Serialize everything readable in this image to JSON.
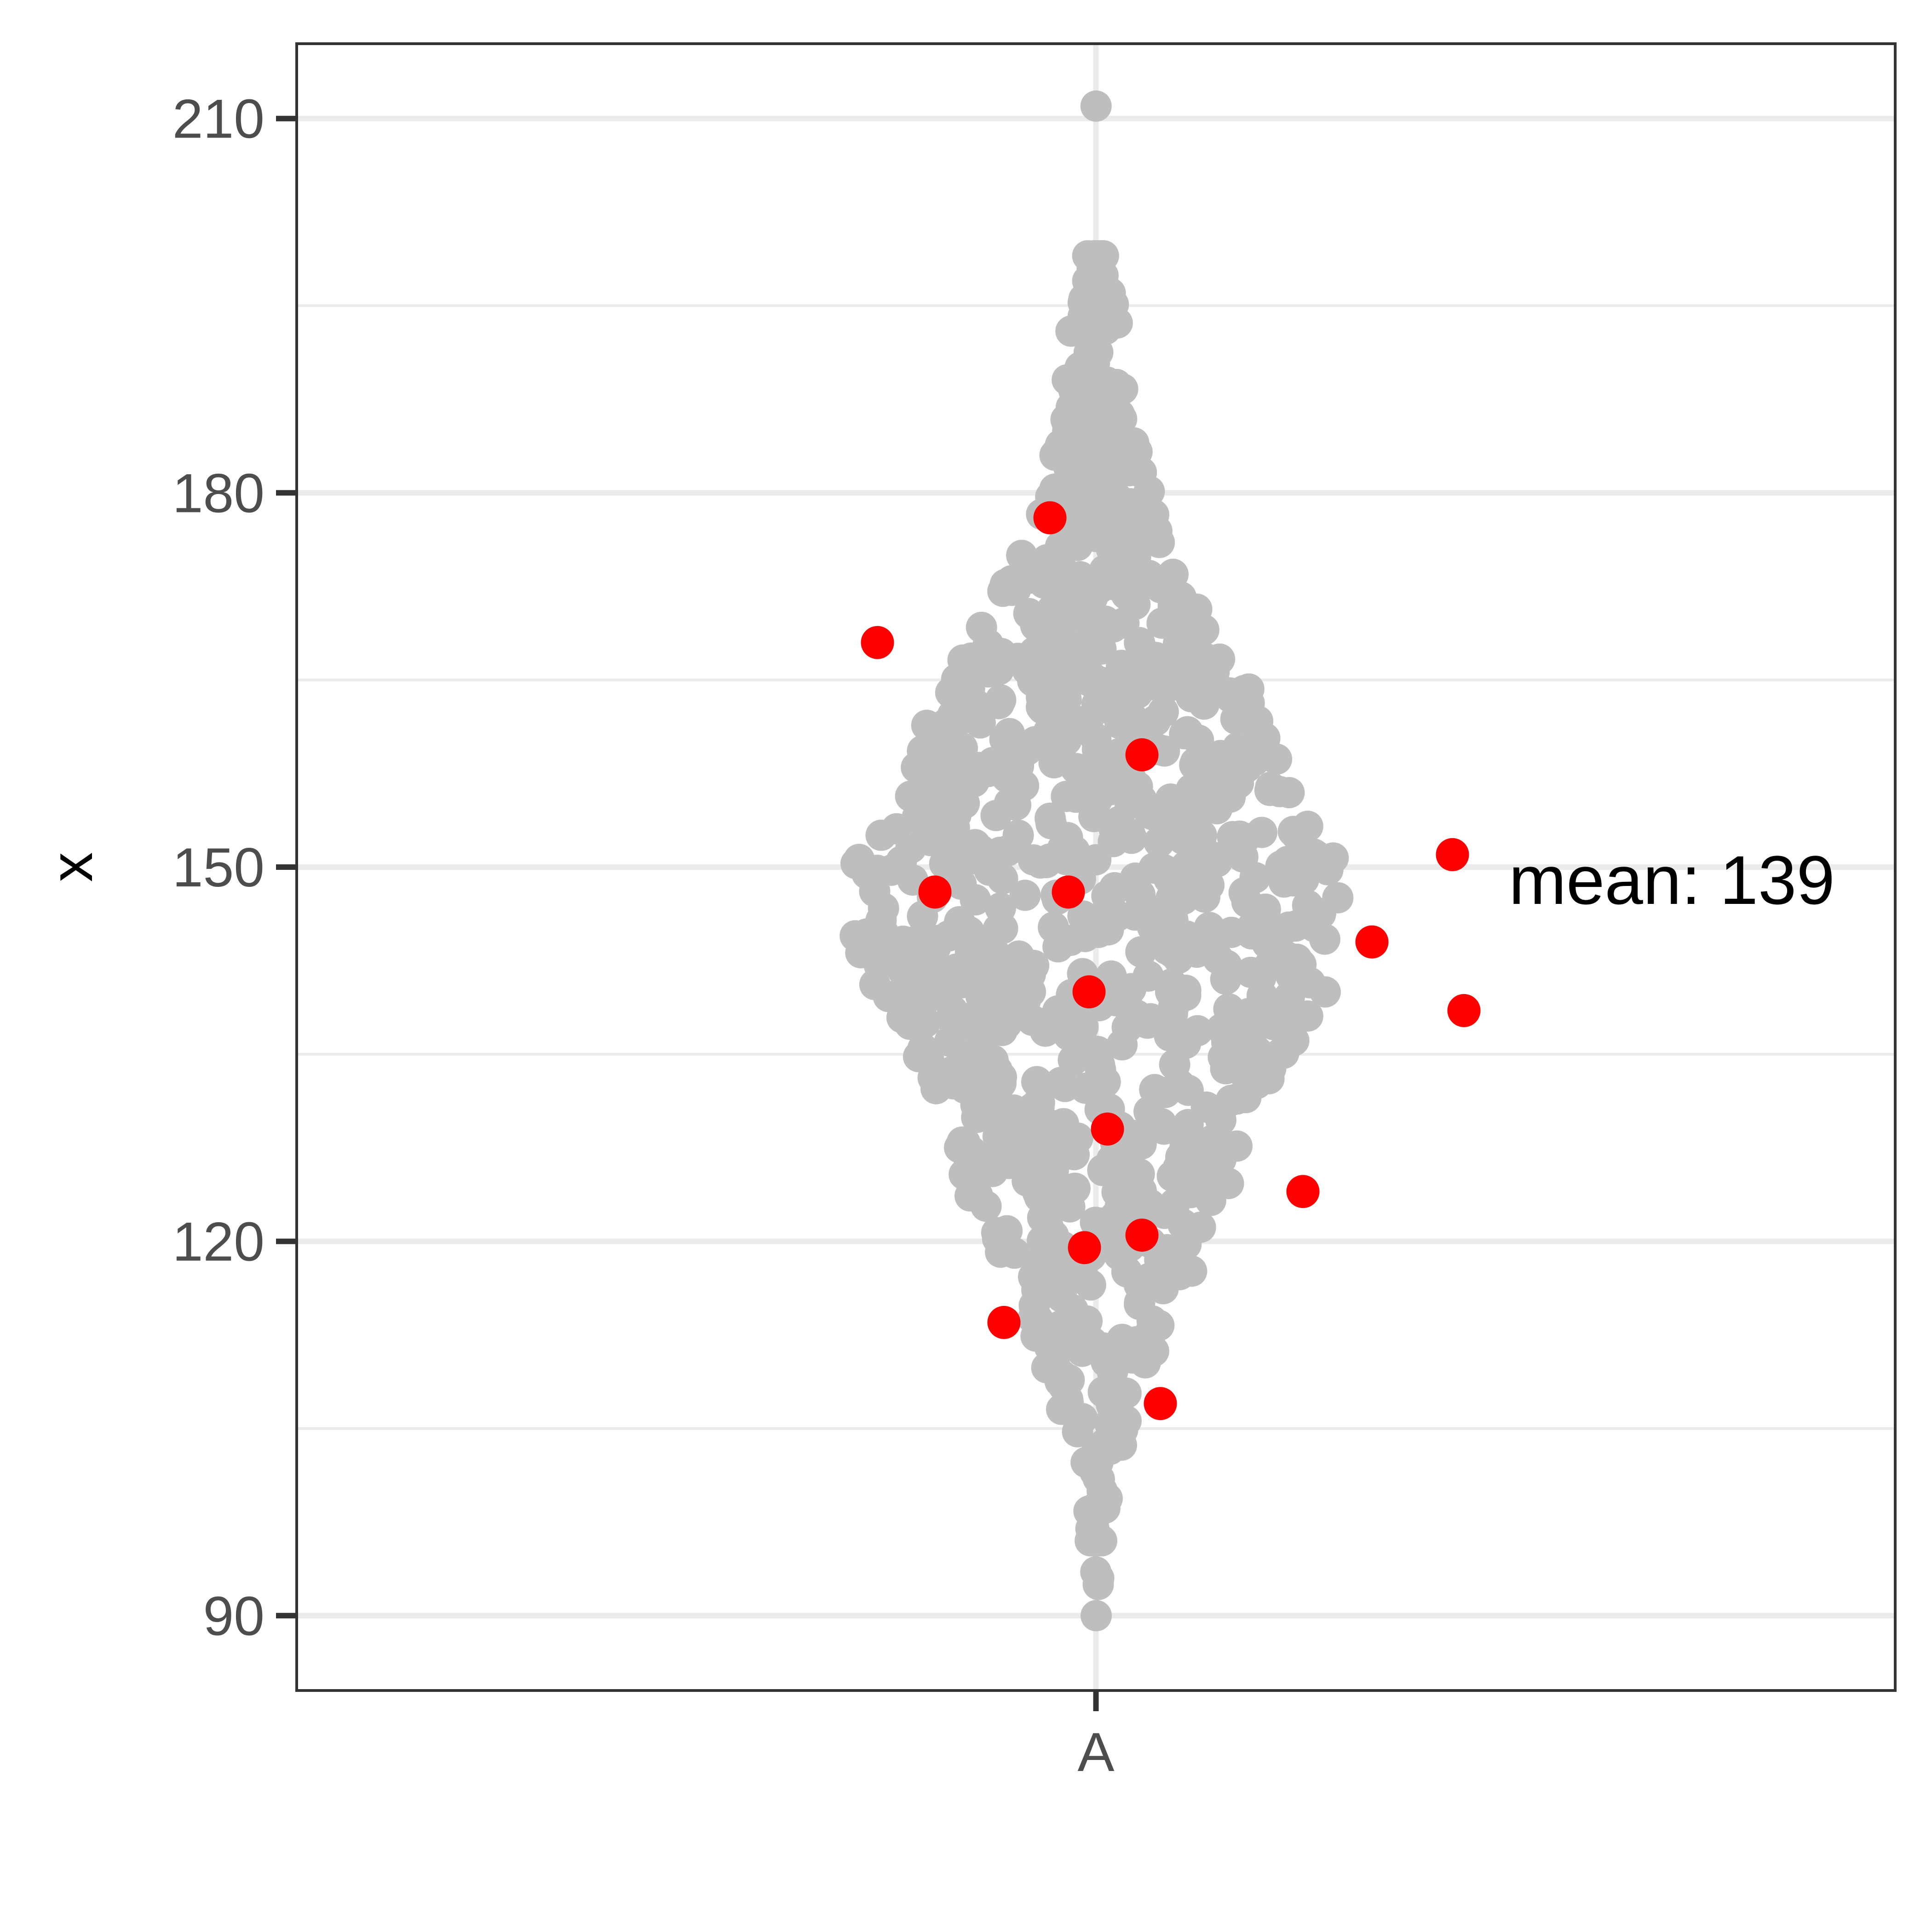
{
  "chart_data": {
    "type": "scatter",
    "subtype": "beeswarm",
    "title": "",
    "xlabel": "",
    "ylabel": "x",
    "categories": [
      "A"
    ],
    "ylim": [
      84,
      216
    ],
    "y_ticks": [
      90,
      120,
      150,
      180,
      210
    ],
    "grid": true,
    "legend": "none",
    "annotation": {
      "text": "mean: 139",
      "x": "A",
      "y": 149
    },
    "colors": {
      "points": "#bebebe",
      "highlight": "#ff0000",
      "grid": "#ebebeb",
      "panel_border": "#333333",
      "tick_label": "#4d4d4d"
    },
    "distribution": {
      "n_points": 1000,
      "mode": 146,
      "min": 90,
      "max": 211,
      "spread_by_value": [
        [
          90,
          1
        ],
        [
          95,
          4
        ],
        [
          100,
          12
        ],
        [
          105,
          28
        ],
        [
          110,
          50
        ],
        [
          115,
          75
        ],
        [
          120,
          105
        ],
        [
          125,
          125
        ],
        [
          130,
          140
        ],
        [
          135,
          175
        ],
        [
          140,
          215
        ],
        [
          145,
          225
        ],
        [
          150,
          225
        ],
        [
          155,
          195
        ],
        [
          160,
          165
        ],
        [
          165,
          140
        ],
        [
          170,
          100
        ],
        [
          175,
          70
        ],
        [
          180,
          50
        ],
        [
          185,
          35
        ],
        [
          190,
          28
        ],
        [
          195,
          20
        ],
        [
          198,
          10
        ],
        [
          201,
          3
        ],
        [
          205,
          1
        ],
        [
          211,
          1
        ]
      ]
    },
    "highlighted_points": [
      {
        "offset": -0.95,
        "y": 168
      },
      {
        "offset": 0.2,
        "y": 159
      },
      {
        "offset": -0.7,
        "y": 148
      },
      {
        "offset": -0.12,
        "y": 148
      },
      {
        "offset": 1.55,
        "y": 151
      },
      {
        "offset": 1.2,
        "y": 144
      },
      {
        "offset": -0.03,
        "y": 140
      },
      {
        "offset": 1.6,
        "y": 138.5
      },
      {
        "offset": 0.05,
        "y": 129
      },
      {
        "offset": 0.9,
        "y": 124
      },
      {
        "offset": -0.05,
        "y": 119.5
      },
      {
        "offset": 0.2,
        "y": 120.5
      },
      {
        "offset": -0.4,
        "y": 113.5
      },
      {
        "offset": 0.28,
        "y": 107
      },
      {
        "offset": -0.2,
        "y": 178
      }
    ]
  }
}
